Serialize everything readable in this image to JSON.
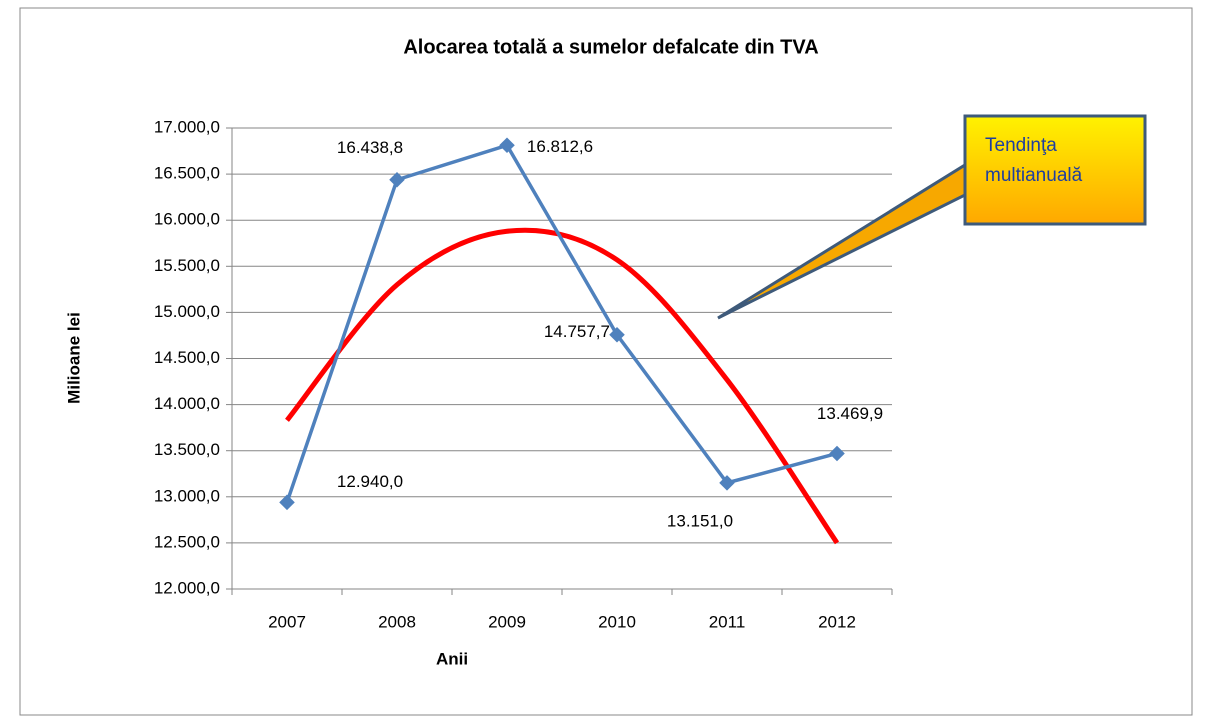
{
  "chart_data": {
    "type": "line",
    "title": "Alocarea totală a sumelor defalcate din TVA",
    "xlabel": "Anii",
    "ylabel": "Milioane lei",
    "categories": [
      "2007",
      "2008",
      "2009",
      "2010",
      "2011",
      "2012"
    ],
    "series": [
      {
        "name": "Alocarea totală",
        "color": "#4f81bd",
        "values": [
          12940.0,
          16438.8,
          16812.6,
          14757.7,
          13151.0,
          13469.9
        ],
        "value_labels": [
          "12.940,0",
          "16.438,8",
          "16.812,6",
          "14.757,7",
          "13.151,0",
          "13.469,9"
        ]
      },
      {
        "name": "Tendinţa multianuală",
        "color": "#ff0000",
        "values": [
          13830,
          15300,
          15880,
          15570,
          14270,
          12500
        ]
      }
    ],
    "ylim": [
      12000,
      17000
    ],
    "yticks": [
      {
        "value": 12000,
        "label": "12.000,0"
      },
      {
        "value": 12500,
        "label": "12.500,0"
      },
      {
        "value": 13000,
        "label": "13.000,0"
      },
      {
        "value": 13500,
        "label": "13.500,0"
      },
      {
        "value": 14000,
        "label": "14.000,0"
      },
      {
        "value": 14500,
        "label": "14.500,0"
      },
      {
        "value": 15000,
        "label": "15.000,0"
      },
      {
        "value": 15500,
        "label": "15.500,0"
      },
      {
        "value": 16000,
        "label": "16.000,0"
      },
      {
        "value": 16500,
        "label": "16.500,0"
      },
      {
        "value": 17000,
        "label": "17.000,0"
      }
    ],
    "grid": true
  }
}
